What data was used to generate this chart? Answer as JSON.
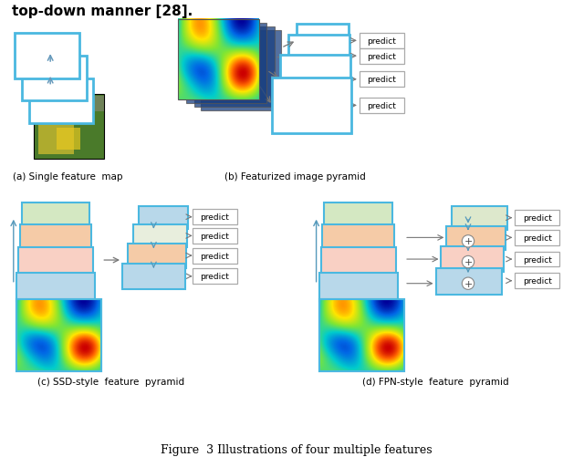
{
  "title": "Figure  3 Illustrations of four multiple features",
  "header_text": "top-down manner [28].",
  "caption_a": "(a) Single feature  map",
  "caption_b": "(b) Featurized image pyramid",
  "caption_c": "(c) SSD-style  feature  pyramid",
  "caption_d": "(d) FPN-style  feature  pyramid",
  "blue_border": "#4ab8e0",
  "light_blue_fill": "#b8d8ea",
  "light_green_fill": "#d4e8c2",
  "light_orange_fill": "#f5cba7",
  "light_pink_fill": "#f9d0c4",
  "predict_border_color": "#aaaaaa",
  "arrow_color": "#888888",
  "bg_color": "#ffffff"
}
